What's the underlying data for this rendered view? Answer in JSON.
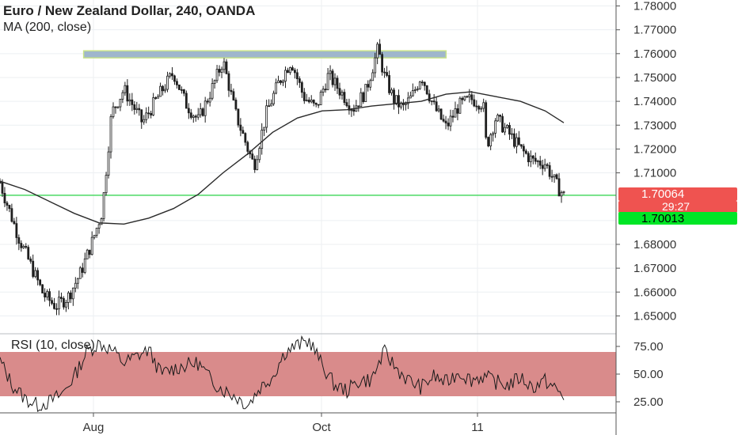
{
  "header": {
    "title": "Euro / New Zealand Dollar, 240, OANDA",
    "indicator": "MA (200, close)"
  },
  "rsi_label": "RSI (10, close)",
  "badges": {
    "price_top": "1.70064",
    "countdown": "29:27",
    "price_bottom": "1.70013"
  },
  "colors": {
    "candle": "#1e1e1e",
    "ma": "#2a2a2a",
    "resistance_band": "#9fb6cc",
    "support_line": "#4cd964",
    "badge_red": "#ef5350",
    "badge_green": "#00e626",
    "rsi_band": "#d98b8b",
    "grid": "#eceff2",
    "axis_text": "#333333"
  },
  "chart_data": [
    {
      "type": "candlestick",
      "title": "Euro / New Zealand Dollar, 240, OANDA",
      "xlabel": "",
      "ylabel": "",
      "ylim": [
        1.6425,
        1.7825
      ],
      "yticks": [
        "1.78000",
        "1.77000",
        "1.76000",
        "1.75000",
        "1.74000",
        "1.73000",
        "1.72000",
        "1.71000",
        "1.68000",
        "1.67000",
        "1.66000",
        "1.65000"
      ],
      "xticks": [
        "Aug",
        "Oct",
        "11"
      ],
      "grid": true,
      "series": [
        {
          "name": "MA (200, close)",
          "type": "line",
          "x": [
            0,
            0.04,
            0.08,
            0.12,
            0.16,
            0.2,
            0.24,
            0.28,
            0.32,
            0.36,
            0.4,
            0.44,
            0.48,
            0.52,
            0.56,
            0.6,
            0.64,
            0.68,
            0.72,
            0.76,
            0.8,
            0.84,
            0.88,
            0.91
          ],
          "values": [
            1.7065,
            1.703,
            1.698,
            1.693,
            1.689,
            1.6885,
            1.691,
            1.695,
            1.701,
            1.71,
            1.718,
            1.727,
            1.733,
            1.736,
            1.7365,
            1.738,
            1.739,
            1.74,
            1.743,
            1.744,
            1.742,
            1.74,
            1.736,
            1.731
          ]
        },
        {
          "name": "Price",
          "type": "close_path",
          "x": [
            0,
            0.01,
            0.03,
            0.05,
            0.07,
            0.09,
            0.11,
            0.13,
            0.15,
            0.165,
            0.18,
            0.2,
            0.23,
            0.26,
            0.28,
            0.3,
            0.32,
            0.34,
            0.36,
            0.38,
            0.4,
            0.41,
            0.43,
            0.45,
            0.47,
            0.49,
            0.51,
            0.53,
            0.55,
            0.57,
            0.59,
            0.61,
            0.62,
            0.635,
            0.65,
            0.665,
            0.68,
            0.7,
            0.72,
            0.74,
            0.76,
            0.78,
            0.785,
            0.8,
            0.82,
            0.84,
            0.86,
            0.88,
            0.9,
            0.91
          ],
          "values": [
            1.706,
            1.698,
            1.683,
            1.671,
            1.659,
            1.654,
            1.658,
            1.668,
            1.682,
            1.694,
            1.735,
            1.745,
            1.731,
            1.744,
            1.752,
            1.739,
            1.732,
            1.744,
            1.757,
            1.735,
            1.72,
            1.713,
            1.735,
            1.748,
            1.757,
            1.742,
            1.737,
            1.751,
            1.744,
            1.737,
            1.744,
            1.762,
            1.751,
            1.741,
            1.737,
            1.742,
            1.751,
            1.738,
            1.729,
            1.738,
            1.741,
            1.739,
            1.721,
            1.733,
            1.727,
            1.72,
            1.715,
            1.714,
            1.704,
            1.7006
          ]
        }
      ],
      "annotations": [
        {
          "type": "resistance_band",
          "x_start": 0.135,
          "x_end": 0.72,
          "y_low": 1.7585,
          "y_high": 1.7612
        },
        {
          "type": "support_line",
          "y": 1.7006
        }
      ]
    },
    {
      "type": "line",
      "title": "RSI (10, close)",
      "ylim": [
        15,
        85
      ],
      "yticks": [
        "75.00",
        "50.00",
        "25.00"
      ],
      "band": [
        30,
        70
      ],
      "series": [
        {
          "name": "RSI",
          "x": [
            0,
            0.02,
            0.04,
            0.06,
            0.08,
            0.1,
            0.12,
            0.14,
            0.16,
            0.18,
            0.2,
            0.22,
            0.24,
            0.26,
            0.28,
            0.3,
            0.32,
            0.34,
            0.36,
            0.38,
            0.4,
            0.42,
            0.44,
            0.46,
            0.48,
            0.5,
            0.52,
            0.54,
            0.56,
            0.58,
            0.6,
            0.62,
            0.64,
            0.66,
            0.68,
            0.7,
            0.72,
            0.74,
            0.76,
            0.78,
            0.8,
            0.82,
            0.84,
            0.86,
            0.88,
            0.9,
            0.91
          ],
          "values": [
            62,
            40,
            28,
            22,
            25,
            32,
            48,
            70,
            78,
            72,
            60,
            66,
            72,
            50,
            55,
            58,
            60,
            45,
            36,
            30,
            22,
            38,
            48,
            70,
            76,
            80,
            58,
            40,
            35,
            44,
            45,
            70,
            55,
            44,
            38,
            48,
            42,
            52,
            45,
            48,
            43,
            40,
            47,
            38,
            44,
            35,
            28
          ]
        }
      ]
    }
  ]
}
